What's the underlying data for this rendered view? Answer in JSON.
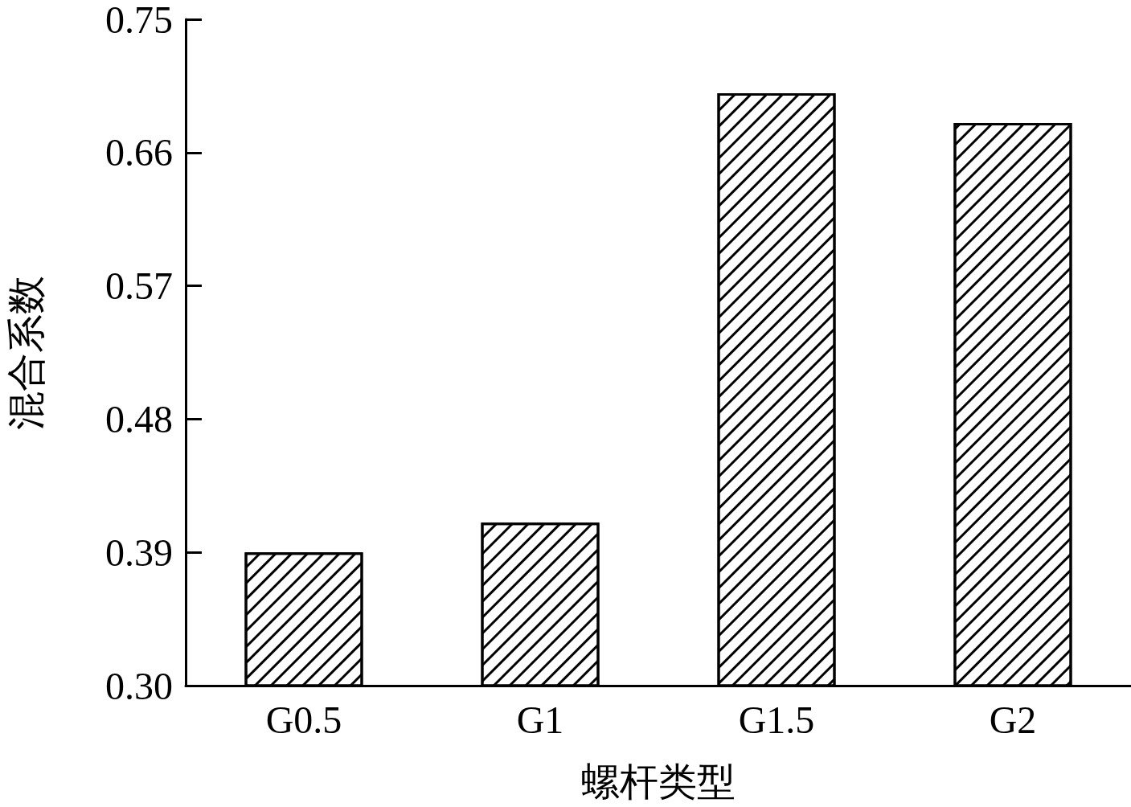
{
  "chart_data": {
    "type": "bar",
    "xlabel": "螺杆类型",
    "ylabel": "混合系数",
    "categories": [
      "G0.5",
      "G1",
      "G1.5",
      "G2"
    ],
    "values": [
      0.39,
      0.41,
      0.7,
      0.68
    ],
    "color": "#000000",
    "ylim": [
      0.3,
      0.75
    ],
    "yticks": [
      {
        "value": 0.3,
        "label": "0.30"
      },
      {
        "value": 0.39,
        "label": "0.39"
      },
      {
        "value": 0.48,
        "label": "0.48"
      },
      {
        "value": 0.57,
        "label": "0.57"
      },
      {
        "value": 0.66,
        "label": "0.66"
      },
      {
        "value": 0.75,
        "label": "0.75"
      }
    ],
    "grid": false
  }
}
